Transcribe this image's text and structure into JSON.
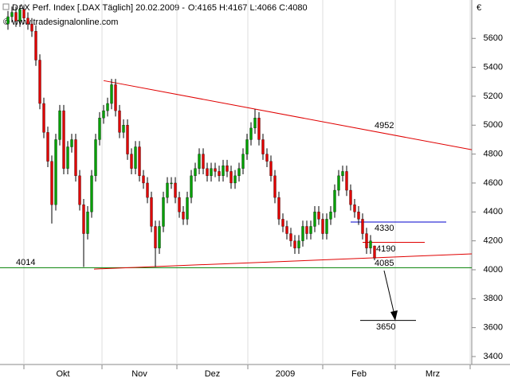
{
  "chart_data": {
    "type": "candlestick",
    "title": "DAX Perf. Index [.DAX  Täglich] 20.02.2009 -",
    "ohlc_labels": [
      "O:4165",
      "H:4167",
      "L:4066",
      "C:4080"
    ],
    "watermark": "© www.tradesignalonline.com",
    "currency": "€",
    "x_labels": [
      "Okt",
      "Nov",
      "Dez",
      "2009",
      "Feb",
      "Mrz"
    ],
    "ylim": [
      3345,
      5838
    ],
    "yticks": [
      3400,
      3600,
      3800,
      4000,
      4200,
      4400,
      4600,
      4800,
      5000,
      5200,
      5400,
      5600
    ],
    "up_color": "#00a000",
    "down_color": "#e00000",
    "open": [
      5700,
      5750,
      5780,
      5720,
      5800,
      5740,
      5700,
      5650,
      5450,
      5150,
      4950,
      4750,
      4450,
      4900,
      5100,
      4700,
      4850,
      4900,
      4650,
      4450,
      4250,
      4400,
      4650,
      4900,
      5050,
      5100,
      5150,
      5280,
      5100,
      4950,
      5000,
      4800,
      4700,
      4850,
      4650,
      4600,
      4500,
      4300,
      4150,
      4300,
      4500,
      4600,
      4600,
      4500,
      4400,
      4350,
      4500,
      4650,
      4700,
      4800,
      4700,
      4650,
      4700,
      4680,
      4650,
      4720,
      4680,
      4600,
      4650,
      4700,
      4800,
      4900,
      4980,
      5050,
      4900,
      4800,
      4750,
      4650,
      4500,
      4350,
      4300,
      4250,
      4200,
      4150,
      4200,
      4300,
      4250,
      4300,
      4400,
      4350,
      4250,
      4350,
      4400,
      4550,
      4650,
      4680,
      4550,
      4450,
      4400,
      4350,
      4250,
      4150,
      4165
    ],
    "high": [
      5790,
      5820,
      5820,
      5830,
      5830,
      5780,
      5740,
      5690,
      5490,
      5190,
      4990,
      4790,
      4940,
      5140,
      5140,
      4890,
      4940,
      4940,
      4690,
      4490,
      4440,
      4690,
      4940,
      5090,
      5140,
      5190,
      5320,
      5320,
      5140,
      5040,
      5040,
      4840,
      4890,
      4890,
      4690,
      4640,
      4540,
      4340,
      4340,
      4540,
      4640,
      4640,
      4640,
      4540,
      4440,
      4540,
      4690,
      4740,
      4840,
      4840,
      4740,
      4740,
      4740,
      4720,
      4760,
      4760,
      4720,
      4690,
      4740,
      4840,
      4940,
      5020,
      5110,
      5090,
      4940,
      4840,
      4790,
      4690,
      4540,
      4390,
      4340,
      4290,
      4240,
      4240,
      4340,
      4340,
      4340,
      4440,
      4440,
      4390,
      4390,
      4440,
      4590,
      4690,
      4720,
      4720,
      4590,
      4490,
      4440,
      4390,
      4290,
      4240,
      4167
    ],
    "low": [
      5660,
      5710,
      5680,
      5680,
      5700,
      5660,
      5610,
      5410,
      5110,
      4910,
      4710,
      4320,
      4410,
      4860,
      4660,
      4660,
      4810,
      4610,
      4410,
      4020,
      4210,
      4360,
      4610,
      4860,
      5010,
      5060,
      5110,
      5060,
      4910,
      4910,
      4760,
      4660,
      4660,
      4610,
      4560,
      4460,
      4260,
      4020,
      4110,
      4260,
      4460,
      4560,
      4460,
      4360,
      4310,
      4310,
      4460,
      4610,
      4660,
      4660,
      4610,
      4610,
      4640,
      4610,
      4610,
      4640,
      4560,
      4560,
      4610,
      4660,
      4760,
      4860,
      4940,
      4860,
      4760,
      4710,
      4610,
      4460,
      4310,
      4260,
      4210,
      4160,
      4110,
      4110,
      4160,
      4210,
      4210,
      4260,
      4310,
      4210,
      4210,
      4310,
      4360,
      4510,
      4610,
      4510,
      4410,
      4360,
      4310,
      4210,
      4110,
      4110,
      4066
    ],
    "close": [
      5750,
      5780,
      5720,
      5800,
      5740,
      5700,
      5650,
      5450,
      5150,
      4950,
      4750,
      4450,
      4900,
      5100,
      4700,
      4850,
      4900,
      4650,
      4450,
      4250,
      4400,
      4650,
      4900,
      5050,
      5100,
      5150,
      5280,
      5100,
      4950,
      5000,
      4800,
      4700,
      4850,
      4650,
      4600,
      4500,
      4300,
      4150,
      4300,
      4500,
      4600,
      4600,
      4500,
      4400,
      4350,
      4500,
      4650,
      4700,
      4800,
      4700,
      4650,
      4700,
      4680,
      4650,
      4720,
      4680,
      4600,
      4650,
      4700,
      4800,
      4900,
      4980,
      5050,
      4900,
      4800,
      4750,
      4650,
      4500,
      4350,
      4300,
      4250,
      4200,
      4150,
      4200,
      4300,
      4250,
      4300,
      4400,
      4350,
      4250,
      4350,
      4400,
      4550,
      4650,
      4680,
      4550,
      4450,
      4400,
      4350,
      4250,
      4150,
      4200,
      4080
    ],
    "trendlines": [
      {
        "color": "#e00000",
        "values": [
          5308,
          4830
        ]
      },
      {
        "color": "#e00000",
        "values": [
          4005,
          4110
        ]
      }
    ],
    "levels": [
      {
        "value": 4014,
        "color": "#008000",
        "label": 4014
      },
      {
        "value": 4330,
        "color": "#0000cc",
        "label": 4330
      },
      {
        "value": 4190,
        "color": "#e00000",
        "label": 4190
      },
      {
        "value": 3650,
        "color": "#000000",
        "label": 3650
      }
    ],
    "annotations": [
      {
        "label": 4952,
        "color": "#e00000"
      },
      {
        "label": 4085,
        "color": "#e00000"
      }
    ]
  }
}
